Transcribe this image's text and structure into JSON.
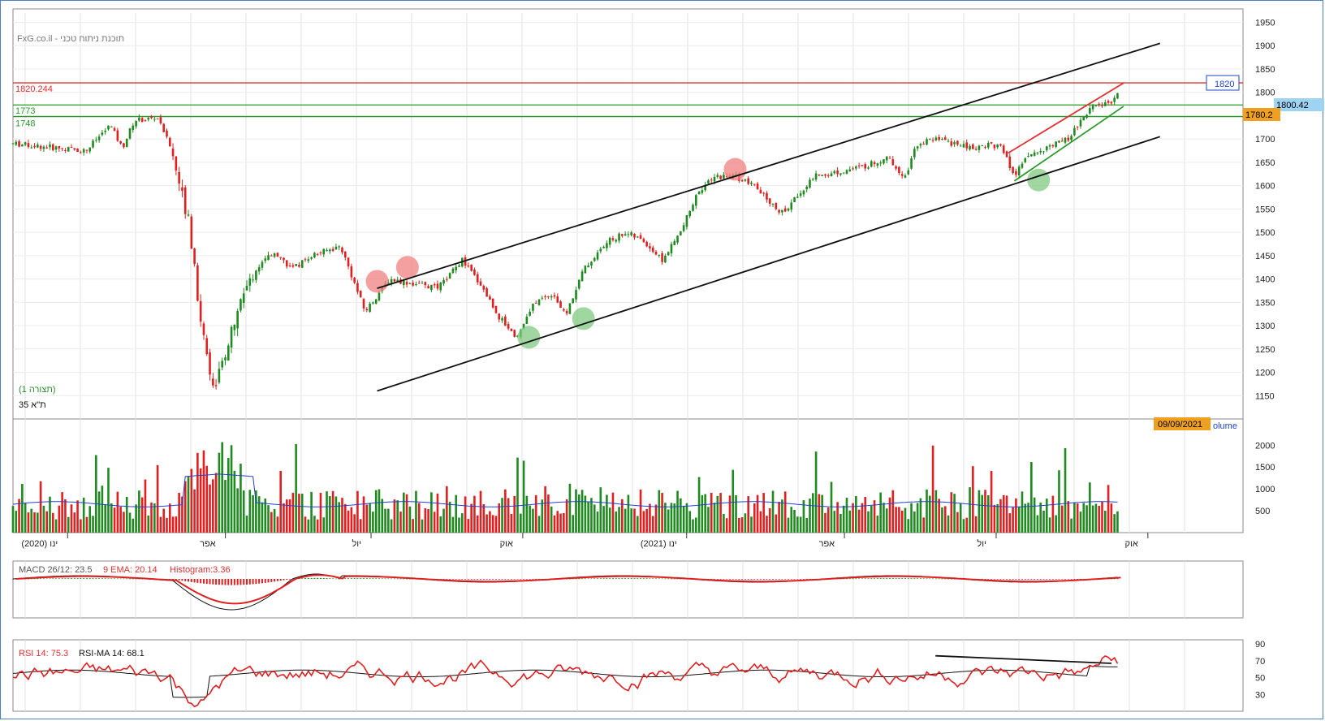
{
  "header": {
    "title": "FxG.co.il - תוכנת ניתוח טכני",
    "pattern_label": "(תצורה 1)",
    "instrument": "ת\"א 35",
    "date_badge": "09/09/2021",
    "volume_label": "olume"
  },
  "price_panel": {
    "y_ticks": [
      1950,
      1900,
      1850,
      1800,
      1750,
      1700,
      1650,
      1600,
      1550,
      1500,
      1450,
      1400,
      1350,
      1300,
      1250,
      1200,
      1150
    ],
    "ylim": [
      1100,
      1970
    ],
    "hlines": [
      {
        "label": "1820.244",
        "value": 1820.244,
        "color": "#e03030"
      },
      {
        "label": "1773",
        "value": 1773,
        "color": "#2a9a2a"
      },
      {
        "label": "1748",
        "value": 1748,
        "color": "#2a9a2a"
      }
    ],
    "target_box": "1820",
    "last_price": "1800.42",
    "prev_price": "1780.2",
    "channel_lines": [
      {
        "name": "upper",
        "color": "#111111",
        "from": [
          0.3,
          1380
        ],
        "to": [
          0.945,
          1905
        ]
      },
      {
        "name": "lower",
        "color": "#111111",
        "from": [
          0.3,
          1160
        ],
        "to": [
          0.945,
          1705
        ]
      },
      {
        "name": "short-upper",
        "color": "#e03030",
        "from": [
          0.82,
          1670
        ],
        "to": [
          0.915,
          1820
        ]
      },
      {
        "name": "short-lower",
        "color": "#2a9a2a",
        "from": [
          0.825,
          1610
        ],
        "to": [
          0.915,
          1770
        ]
      }
    ]
  },
  "volume_panel": {
    "y_ticks": [
      2000,
      1500,
      1000,
      500
    ],
    "ylim": [
      0,
      2600
    ]
  },
  "x_axis": {
    "labels": [
      {
        "text": "ינו (2020)",
        "pos": 0.045
      },
      {
        "text": "אפר",
        "pos": 0.175
      },
      {
        "text": "יול",
        "pos": 0.295
      },
      {
        "text": "אוק",
        "pos": 0.42
      },
      {
        "text": "ינו (2021)",
        "pos": 0.555
      },
      {
        "text": "אפר",
        "pos": 0.685
      },
      {
        "text": "יול",
        "pos": 0.81
      },
      {
        "text": "אוק",
        "pos": 0.935
      }
    ]
  },
  "macd_panel": {
    "label_macd": "MACD 26/12: 23.5",
    "label_ema": "9 EMA: 20.14",
    "label_hist": "Histogram:3.36"
  },
  "rsi_panel": {
    "label_rsi": "RSI 14: 75.3",
    "label_rsima": "RSI-MA 14:  68.1",
    "y_ticks": [
      90,
      70,
      50,
      30
    ],
    "ylim": [
      10,
      95
    ]
  },
  "chart_data": {
    "type": "candlestick",
    "title": "FxG.co.il - תוכנת ניתוח טכני",
    "series_name": "ת\"א 35",
    "anchors": [
      [
        0.0,
        1690
      ],
      [
        0.06,
        1675
      ],
      [
        0.08,
        1730
      ],
      [
        0.09,
        1680
      ],
      [
        0.1,
        1740
      ],
      [
        0.12,
        1745
      ],
      [
        0.13,
        1680
      ],
      [
        0.145,
        1520
      ],
      [
        0.155,
        1300
      ],
      [
        0.165,
        1170
      ],
      [
        0.175,
        1230
      ],
      [
        0.185,
        1340
      ],
      [
        0.2,
        1420
      ],
      [
        0.215,
        1460
      ],
      [
        0.23,
        1420
      ],
      [
        0.245,
        1450
      ],
      [
        0.27,
        1470
      ],
      [
        0.29,
        1330
      ],
      [
        0.31,
        1400
      ],
      [
        0.33,
        1390
      ],
      [
        0.35,
        1380
      ],
      [
        0.37,
        1440
      ],
      [
        0.385,
        1390
      ],
      [
        0.4,
        1320
      ],
      [
        0.415,
        1275
      ],
      [
        0.43,
        1350
      ],
      [
        0.445,
        1370
      ],
      [
        0.455,
        1320
      ],
      [
        0.47,
        1420
      ],
      [
        0.49,
        1480
      ],
      [
        0.505,
        1500
      ],
      [
        0.52,
        1480
      ],
      [
        0.535,
        1440
      ],
      [
        0.55,
        1500
      ],
      [
        0.565,
        1590
      ],
      [
        0.58,
        1620
      ],
      [
        0.595,
        1620
      ],
      [
        0.61,
        1600
      ],
      [
        0.625,
        1560
      ],
      [
        0.635,
        1540
      ],
      [
        0.645,
        1575
      ],
      [
        0.66,
        1620
      ],
      [
        0.68,
        1630
      ],
      [
        0.7,
        1640
      ],
      [
        0.72,
        1660
      ],
      [
        0.735,
        1620
      ],
      [
        0.745,
        1690
      ],
      [
        0.76,
        1700
      ],
      [
        0.775,
        1690
      ],
      [
        0.79,
        1680
      ],
      [
        0.805,
        1690
      ],
      [
        0.815,
        1680
      ],
      [
        0.825,
        1620
      ],
      [
        0.835,
        1660
      ],
      [
        0.85,
        1680
      ],
      [
        0.87,
        1700
      ],
      [
        0.88,
        1740
      ],
      [
        0.89,
        1770
      ],
      [
        0.9,
        1775
      ],
      [
        0.905,
        1780
      ],
      [
        0.91,
        1800
      ]
    ],
    "ylim": [
      1100,
      1970
    ]
  }
}
